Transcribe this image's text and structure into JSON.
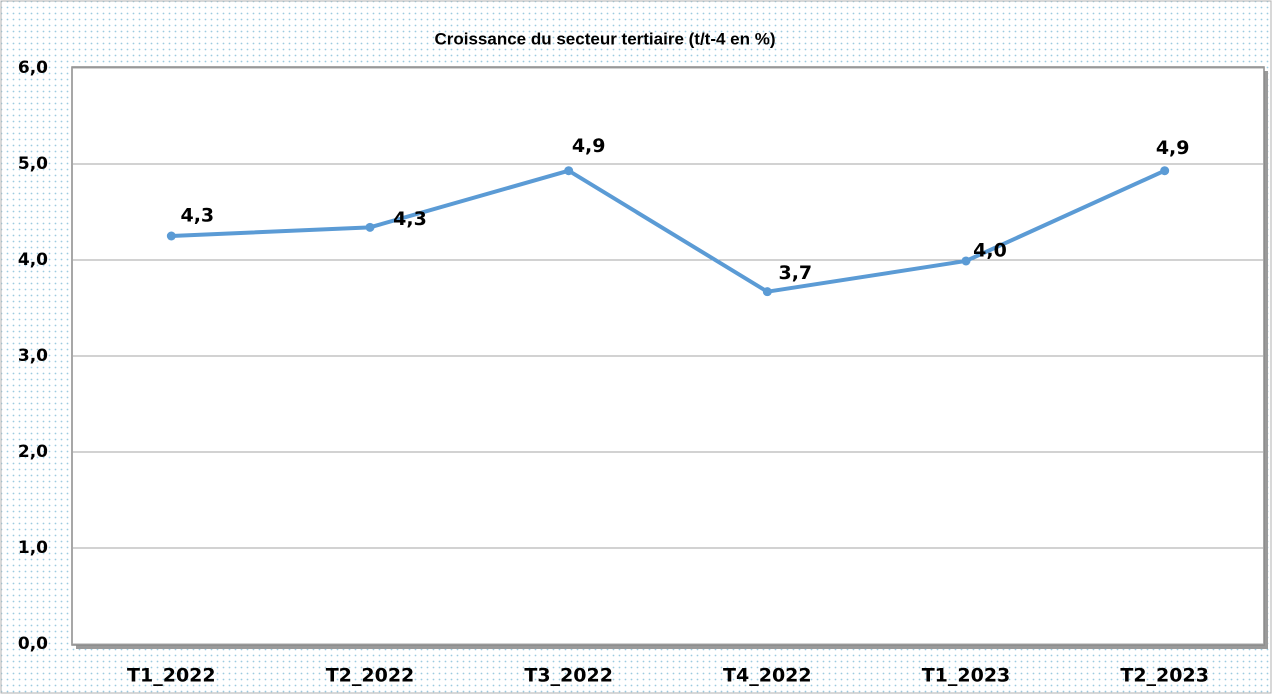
{
  "chart_data": {
    "type": "line",
    "title": "Croissance du secteur tertiaire (t/t-4 en %)",
    "categories": [
      "T1_2022",
      "T2_2022",
      "T3_2022",
      "T4_2022",
      "T1_2023",
      "T2_2023"
    ],
    "series": [
      {
        "name": "Croissance du secteur tertiaire",
        "color": "#5b9bd5",
        "values": [
          4.25,
          4.34,
          4.93,
          3.67,
          3.99,
          4.93
        ],
        "value_labels": [
          "4,3",
          "4,3",
          "4,9",
          "3,7",
          "4,0",
          "4,9"
        ]
      }
    ],
    "ylim": [
      0,
      6
    ],
    "yticks": [
      {
        "value": 0,
        "label": "0,0"
      },
      {
        "value": 1,
        "label": "1,0"
      },
      {
        "value": 2,
        "label": "2,0"
      },
      {
        "value": 3,
        "label": "3,0"
      },
      {
        "value": 4,
        "label": "4,0"
      },
      {
        "value": 5,
        "label": "5,0"
      },
      {
        "value": 6,
        "label": "6,0"
      }
    ],
    "grid": true
  }
}
